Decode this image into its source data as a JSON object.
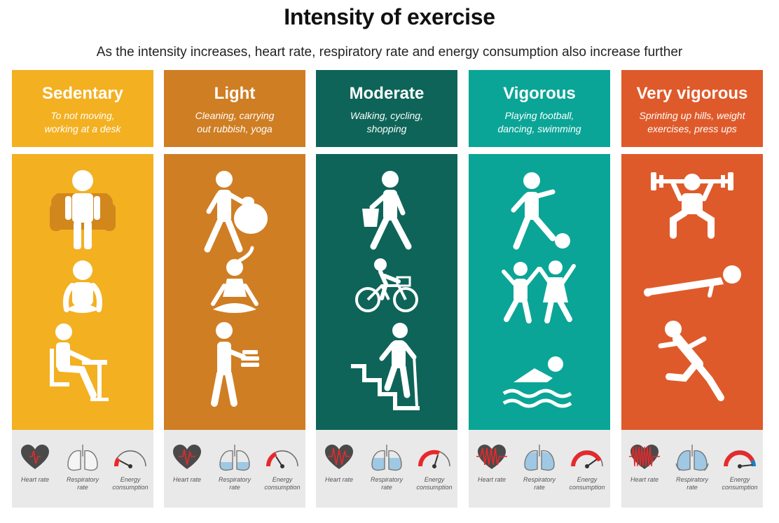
{
  "title": "Intensity of exercise",
  "subtitle": "As the intensity increases, heart rate, respiratory rate and energy consumption also increase further",
  "meter_labels": {
    "heart": "Heart rate",
    "resp_1": "Respiratory",
    "resp_2": "rate",
    "energy_1": "Energy",
    "energy_2": "consumption"
  },
  "colors": {
    "sedentary": "#f3b021",
    "light": "#cf7e24",
    "moderate": "#0e6458",
    "vigorous": "#0aa596",
    "very_vigorous": "#df5a2a",
    "gauge_red": "#e8292b",
    "gauge_blue": "#1a7ec2",
    "lung_fill": "#9fc8e4"
  },
  "columns": [
    {
      "name": "Sedentary",
      "desc_1": "To not moving,",
      "desc_2": "working at a desk",
      "icons": [
        "person-in-armchair-icon",
        "person-sitting-cross-legged-icon",
        "person-at-desk-icon"
      ],
      "heart_level": 1,
      "lung_fill": 0.0,
      "energy": 0.15
    },
    {
      "name": "Light",
      "desc_1": "Cleaning, carrying",
      "desc_2": "out rubbish, yoga",
      "icons": [
        "person-carrying-rubbish-bag-icon",
        "person-yoga-icon",
        "person-carrying-plates-icon"
      ],
      "heart_level": 2,
      "lung_fill": 0.35,
      "energy": 0.35
    },
    {
      "name": "Moderate",
      "desc_1": "Walking, cycling,",
      "desc_2": "shopping",
      "icons": [
        "person-walking-with-bag-icon",
        "person-cycling-icon",
        "person-climbing-stairs-icon"
      ],
      "heart_level": 3,
      "lung_fill": 0.55,
      "energy": 0.55
    },
    {
      "name": "Vigorous",
      "desc_1": "Playing football,",
      "desc_2": "dancing, swimming",
      "icons": [
        "person-kicking-ball-icon",
        "people-dancing-icon",
        "person-swimming-icon"
      ],
      "heart_level": 4,
      "lung_fill": 0.9,
      "energy": 0.75
    },
    {
      "name": "Very vigorous",
      "desc_1": "Sprinting up hills, weight",
      "desc_2": "exercises, press ups",
      "icons": [
        "person-lifting-weights-icon",
        "person-doing-press-ups-icon",
        "person-sprinting-icon"
      ],
      "heart_level": 5,
      "lung_fill": 1.0,
      "energy": 1.0
    }
  ]
}
